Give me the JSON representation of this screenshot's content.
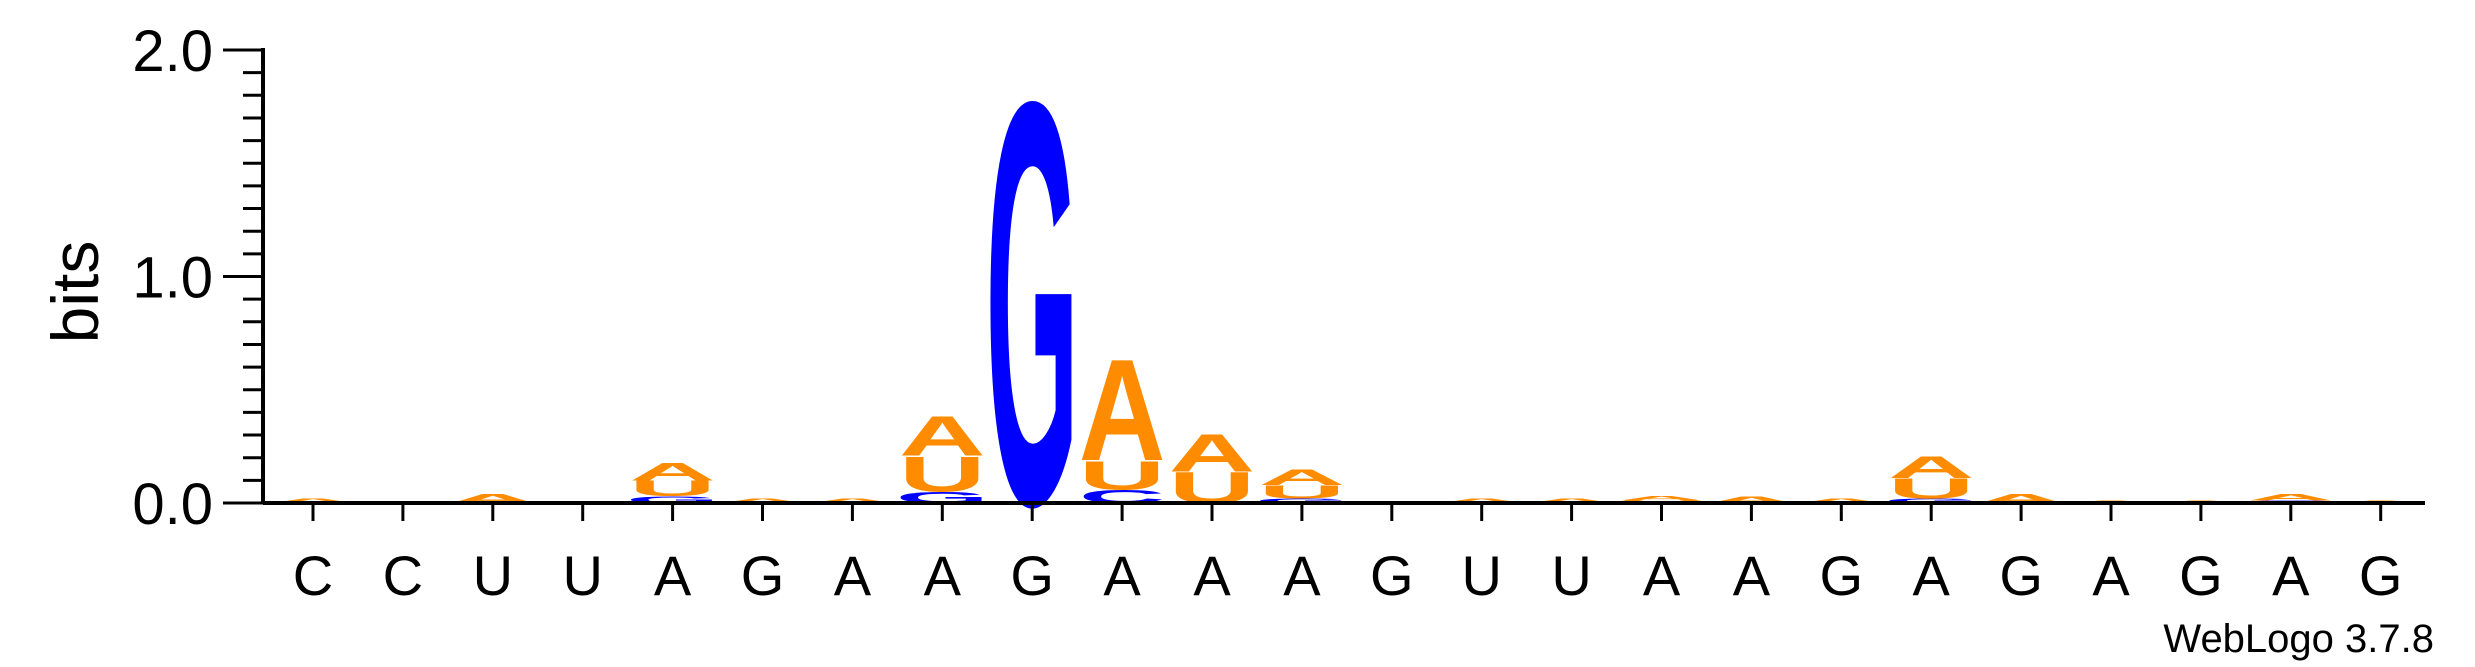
{
  "chart_data": {
    "type": "sequence-logo",
    "ylabel": "bits",
    "ylim": [
      0,
      2.0
    ],
    "yticks": [
      "0.0",
      "1.0",
      "2.0"
    ],
    "colors": {
      "A": "#ff8c00",
      "U": "#ff8c00",
      "G": "#0000ff",
      "C": "#0000ff"
    },
    "positions": [
      {
        "label": "C",
        "stack": [
          {
            "letter": "A",
            "bits": 0.02
          }
        ]
      },
      {
        "label": "C",
        "stack": []
      },
      {
        "label": "U",
        "stack": [
          {
            "letter": "A",
            "bits": 0.04
          }
        ]
      },
      {
        "label": "U",
        "stack": []
      },
      {
        "label": "A",
        "stack": [
          {
            "letter": "G",
            "bits": 0.03
          },
          {
            "letter": "U",
            "bits": 0.07
          },
          {
            "letter": "A",
            "bits": 0.08
          }
        ]
      },
      {
        "label": "G",
        "stack": [
          {
            "letter": "A",
            "bits": 0.02
          }
        ]
      },
      {
        "label": "A",
        "stack": [
          {
            "letter": "A",
            "bits": 0.02
          }
        ]
      },
      {
        "label": "A",
        "stack": [
          {
            "letter": "G",
            "bits": 0.05
          },
          {
            "letter": "U",
            "bits": 0.16
          },
          {
            "letter": "A",
            "bits": 0.18
          }
        ]
      },
      {
        "label": "G",
        "stack": [
          {
            "letter": "G",
            "bits": 1.83
          }
        ]
      },
      {
        "label": "A",
        "stack": [
          {
            "letter": "C",
            "bits": 0.06
          },
          {
            "letter": "U",
            "bits": 0.13
          },
          {
            "letter": "A",
            "bits": 0.46
          }
        ]
      },
      {
        "label": "A",
        "stack": [
          {
            "letter": "U",
            "bits": 0.14
          },
          {
            "letter": "A",
            "bits": 0.17
          }
        ]
      },
      {
        "label": "A",
        "stack": [
          {
            "letter": "G",
            "bits": 0.02
          },
          {
            "letter": "U",
            "bits": 0.06
          },
          {
            "letter": "A",
            "bits": 0.07
          }
        ]
      },
      {
        "label": "G",
        "stack": []
      },
      {
        "label": "U",
        "stack": [
          {
            "letter": "A",
            "bits": 0.02
          }
        ]
      },
      {
        "label": "U",
        "stack": [
          {
            "letter": "A",
            "bits": 0.02
          }
        ]
      },
      {
        "label": "A",
        "stack": [
          {
            "letter": "U",
            "bits": 0.01
          },
          {
            "letter": "A",
            "bits": 0.02
          }
        ]
      },
      {
        "label": "A",
        "stack": [
          {
            "letter": "A",
            "bits": 0.03
          }
        ]
      },
      {
        "label": "G",
        "stack": [
          {
            "letter": "A",
            "bits": 0.02
          }
        ]
      },
      {
        "label": "A",
        "stack": [
          {
            "letter": "G",
            "bits": 0.02
          },
          {
            "letter": "U",
            "bits": 0.09
          },
          {
            "letter": "A",
            "bits": 0.1
          }
        ]
      },
      {
        "label": "G",
        "stack": [
          {
            "letter": "A",
            "bits": 0.04
          }
        ]
      },
      {
        "label": "A",
        "stack": [
          {
            "letter": "A",
            "bits": 0.01
          }
        ]
      },
      {
        "label": "G",
        "stack": [
          {
            "letter": "A",
            "bits": 0.01
          }
        ]
      },
      {
        "label": "A",
        "stack": [
          {
            "letter": "G",
            "bits": 0.01
          },
          {
            "letter": "A",
            "bits": 0.03
          }
        ]
      },
      {
        "label": "G",
        "stack": [
          {
            "letter": "A",
            "bits": 0.01
          }
        ]
      }
    ]
  },
  "credit": "WebLogo 3.7.8"
}
